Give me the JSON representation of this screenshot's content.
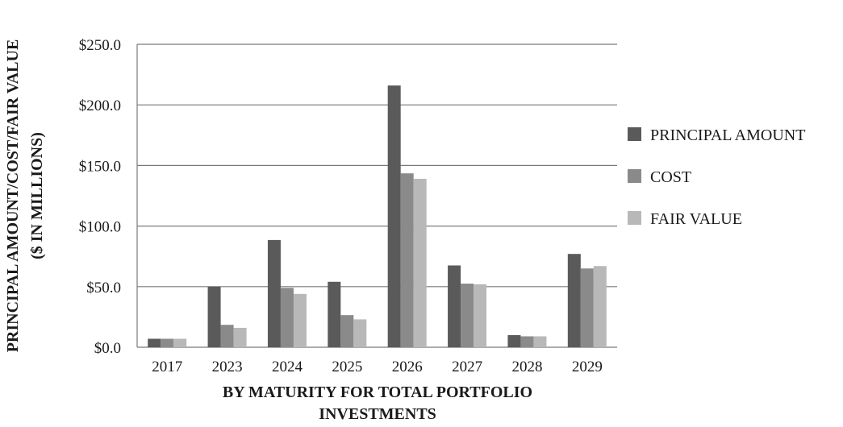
{
  "chart_data": {
    "type": "bar",
    "categories": [
      "2017",
      "2023",
      "2024",
      "2025",
      "2026",
      "2027",
      "2028",
      "2029"
    ],
    "series": [
      {
        "name": "PRINCIPAL AMOUNT",
        "color": "#5a5a5a",
        "values": [
          7.0,
          50.0,
          88.5,
          54.0,
          216.0,
          67.5,
          10.0,
          77.0
        ]
      },
      {
        "name": "COST",
        "color": "#8a8a8a",
        "values": [
          7.0,
          18.5,
          49.0,
          26.5,
          143.5,
          52.5,
          9.0,
          65.0
        ]
      },
      {
        "name": "FAIR VALUE",
        "color": "#b8b8b8",
        "values": [
          7.0,
          16.0,
          44.0,
          23.0,
          139.0,
          52.0,
          9.0,
          67.0
        ]
      }
    ],
    "y_ticks": [
      "$0.0",
      "$50.0",
      "$100.0",
      "$150.0",
      "$200.0",
      "$250.0"
    ],
    "ylim": [
      0,
      250
    ],
    "ylabel_line1": "PRINCIPAL AMOUNT/COST/FAIR VALUE",
    "ylabel_line2": "($ IN MILLIONS)",
    "xlabel_line1": "BY MATURITY FOR TOTAL PORTFOLIO",
    "xlabel_line2": "INVESTMENTS",
    "grid": true,
    "legend_position": "right"
  }
}
